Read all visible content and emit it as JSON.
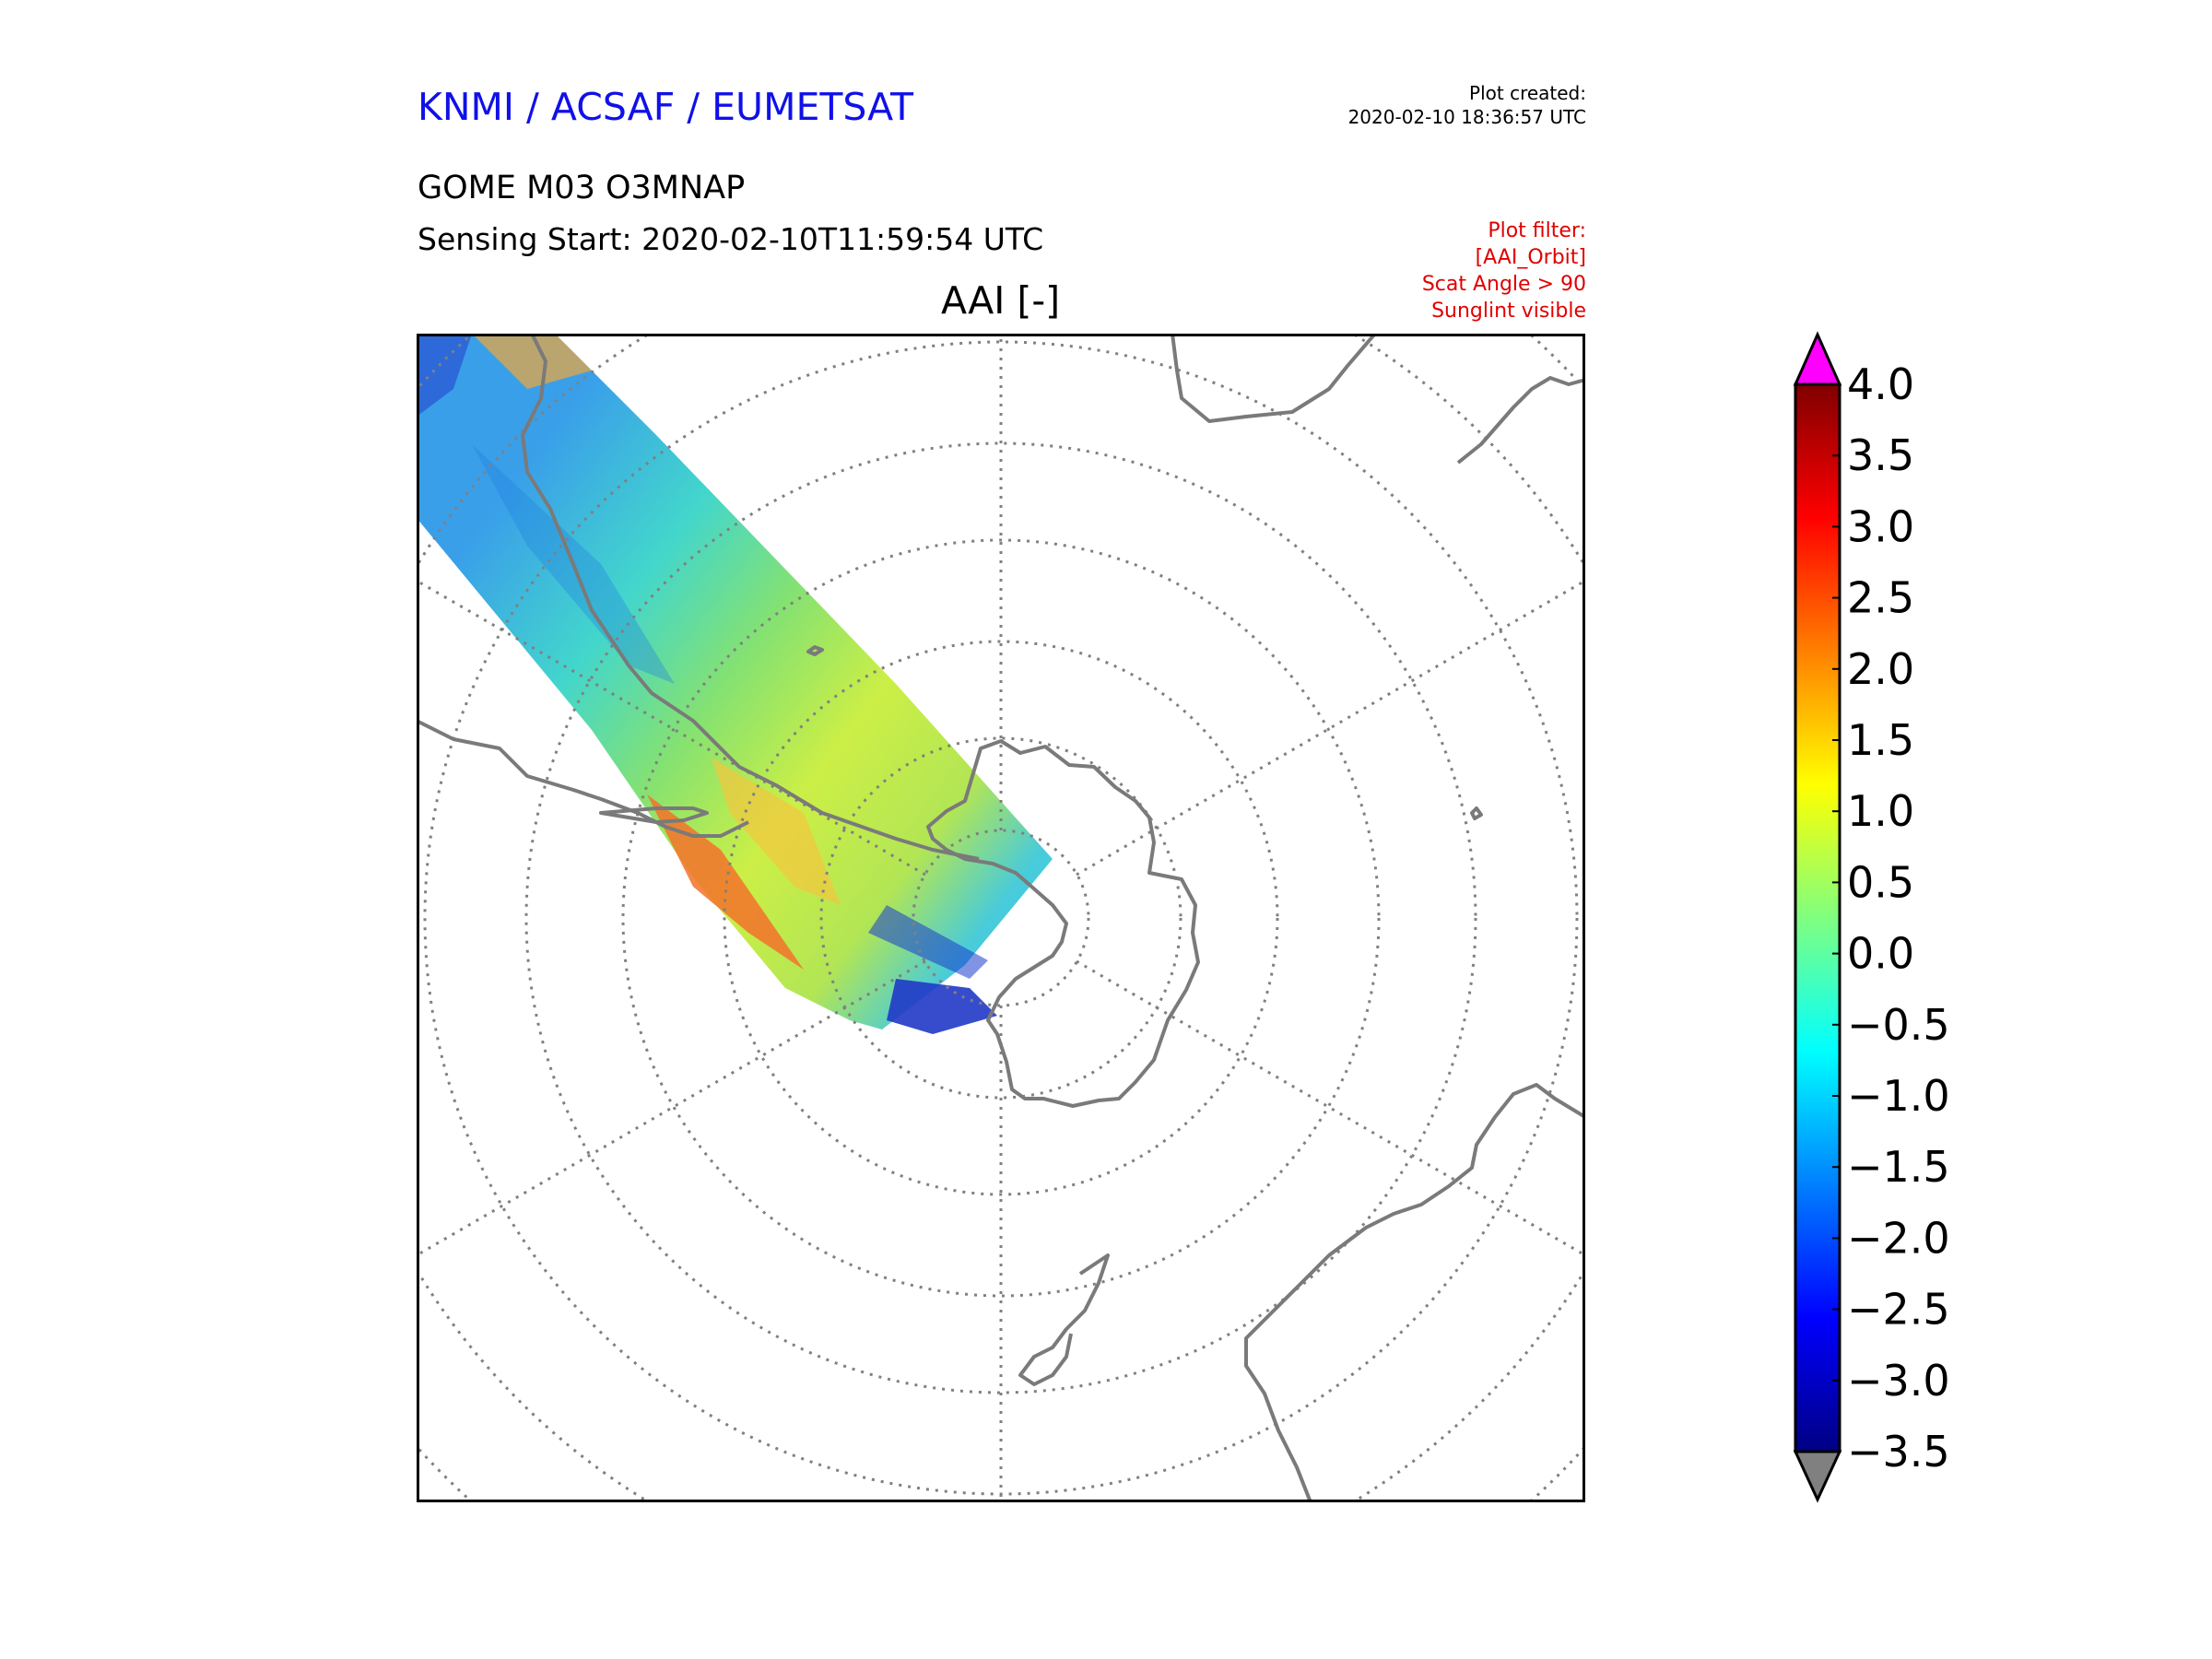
{
  "header": {
    "organization": "KNMI / ACSAF / EUMETSAT",
    "plot_created_label": "Plot created:",
    "plot_created_time": "2020-02-10 18:36:57 UTC",
    "product": "GOME M03 O3MNAP",
    "sensing_start": "Sensing Start: 2020-02-10T11:59:54 UTC"
  },
  "filter": {
    "label": "Plot filter:",
    "lines": [
      "[AAI_Orbit]",
      "Scat Angle > 90",
      "Sunglint visible"
    ]
  },
  "map": {
    "title": "AAI [-]",
    "projection": "south-polar-stereographic"
  },
  "colorbar": {
    "min": -3.5,
    "max": 4.0,
    "tick_labels": [
      "4.0",
      "3.5",
      "3.0",
      "2.5",
      "2.0",
      "1.5",
      "1.0",
      "0.5",
      "0.0",
      "−0.5",
      "−1.0",
      "−1.5",
      "−2.0",
      "−2.5",
      "−3.0",
      "−3.5"
    ],
    "over_color": "#ff00ff",
    "under_color": "#808080"
  },
  "colors": {
    "organization": "#1010e8",
    "filter": "#e00000",
    "coastline": "#7a7a7a",
    "graticule": "#808080"
  }
}
